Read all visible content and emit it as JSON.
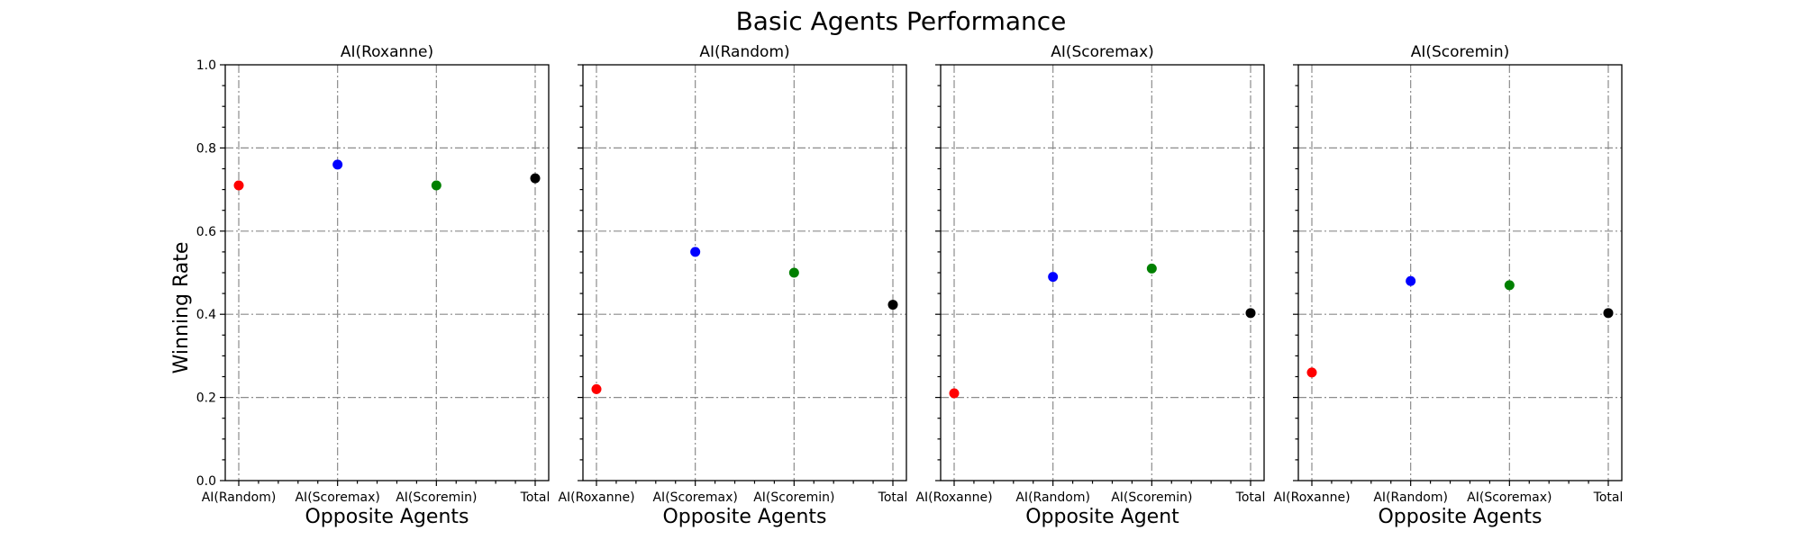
{
  "figure": {
    "title": "Basic Agents Performance",
    "ylabel": "Winning Rate"
  },
  "chart_data": [
    {
      "type": "scatter",
      "title": "AI(Roxanne)",
      "xlabel": "Opposite Agents",
      "ylabel": "Winning Rate",
      "categories": [
        "AI(Random)",
        "AI(Scoremax)",
        "AI(Scoremin)",
        "Total"
      ],
      "values": [
        0.71,
        0.76,
        0.71,
        0.727
      ],
      "colors": [
        "#ff0000",
        "#0000ff",
        "#008000",
        "#000000"
      ],
      "ylim": [
        0,
        1.0
      ],
      "yticks": [
        "0.0",
        "0.2",
        "0.4",
        "0.6",
        "0.8",
        "1.0"
      ],
      "grid": true
    },
    {
      "type": "scatter",
      "title": "AI(Random)",
      "xlabel": "Opposite Agents",
      "categories": [
        "AI(Roxanne)",
        "AI(Scoremax)",
        "AI(Scoremin)",
        "Total"
      ],
      "values": [
        0.22,
        0.55,
        0.5,
        0.423
      ],
      "colors": [
        "#ff0000",
        "#0000ff",
        "#008000",
        "#000000"
      ],
      "ylim": [
        0,
        1.0
      ],
      "grid": true
    },
    {
      "type": "scatter",
      "title": "AI(Scoremax)",
      "xlabel": "Opposite Agent",
      "categories": [
        "AI(Roxanne)",
        "AI(Random)",
        "AI(Scoremin)",
        "Total"
      ],
      "values": [
        0.21,
        0.49,
        0.51,
        0.403
      ],
      "colors": [
        "#ff0000",
        "#0000ff",
        "#008000",
        "#000000"
      ],
      "ylim": [
        0,
        1.0
      ],
      "grid": true
    },
    {
      "type": "scatter",
      "title": "AI(Scoremin)",
      "xlabel": "Opposite Agents",
      "categories": [
        "AI(Roxanne)",
        "AI(Random)",
        "AI(Scoremax)",
        "Total"
      ],
      "values": [
        0.26,
        0.48,
        0.47,
        0.403
      ],
      "colors": [
        "#ff0000",
        "#0000ff",
        "#008000",
        "#000000"
      ],
      "ylim": [
        0,
        1.0
      ],
      "grid": true
    }
  ]
}
